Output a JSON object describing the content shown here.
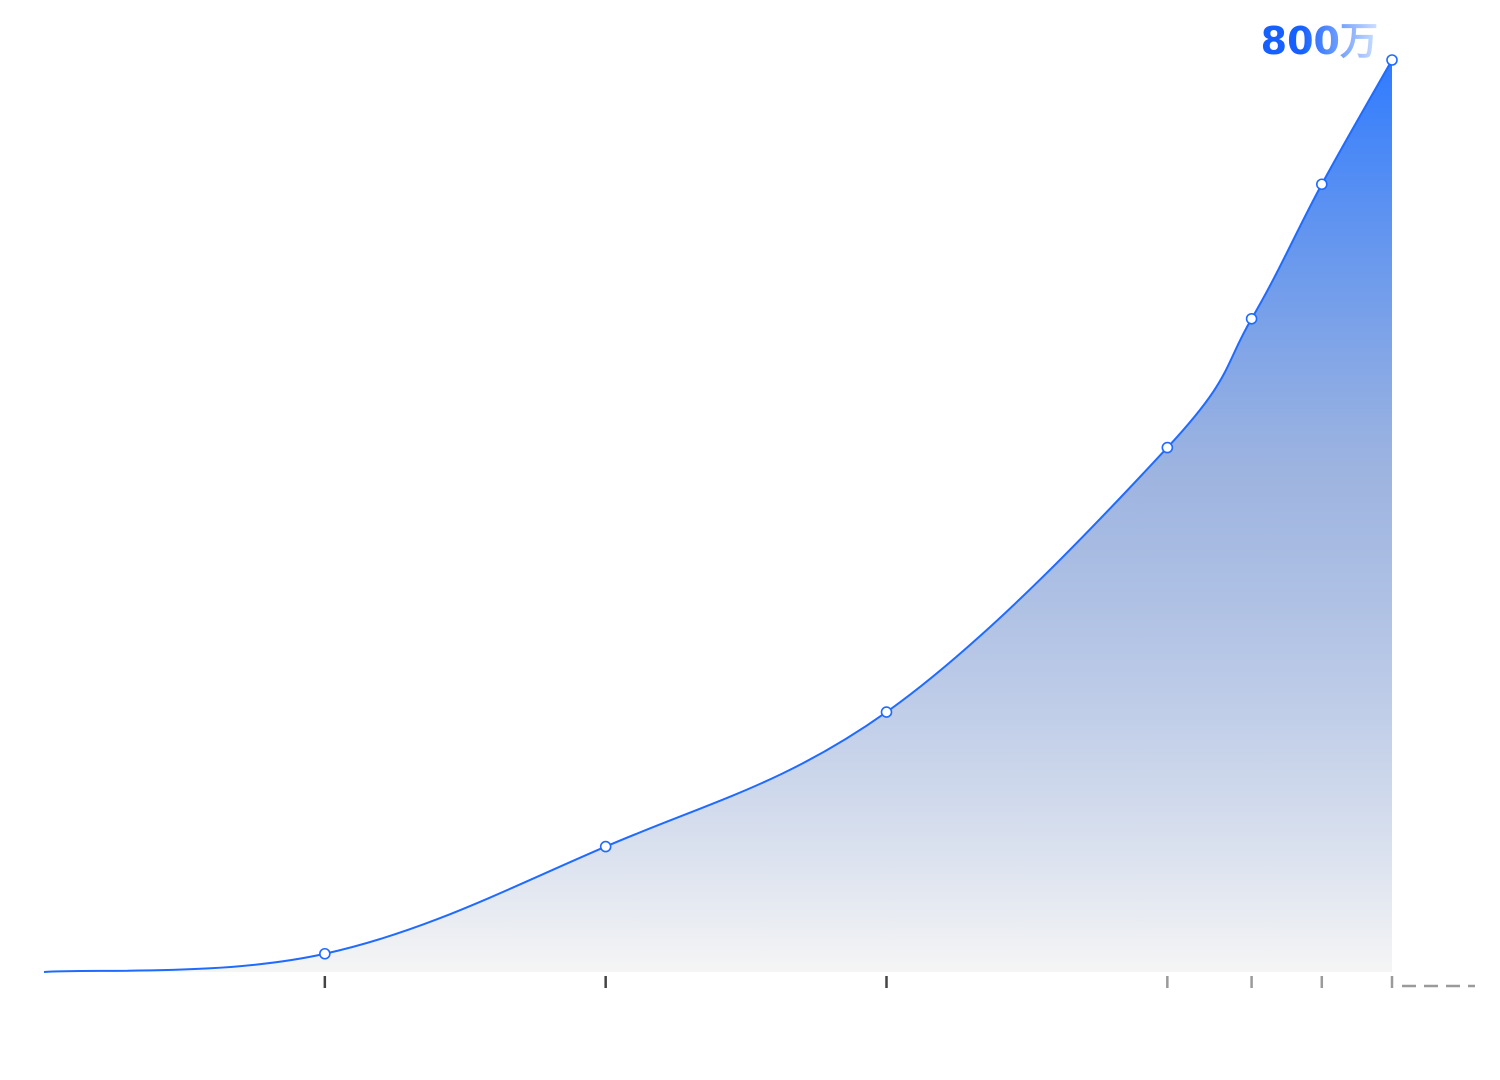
{
  "chart_data": {
    "type": "area",
    "title": "",
    "xlabel": "",
    "ylabel": "",
    "grid": false,
    "legend": "none",
    "peak_label": "800万",
    "points": [
      {
        "x": 0,
        "y": 0
      },
      {
        "x": 1,
        "y": 16
      },
      {
        "x": 2,
        "y": 110
      },
      {
        "x": 3,
        "y": 228
      },
      {
        "x": 4,
        "y": 460
      },
      {
        "x": 4.3,
        "y": 573
      },
      {
        "x": 4.55,
        "y": 691
      },
      {
        "x": 4.8,
        "y": 800
      }
    ],
    "x_ticks": [
      1,
      2,
      3,
      4,
      4.3,
      4.55,
      4.8
    ],
    "ylim": [
      0,
      800
    ],
    "colors": {
      "line": "#1f6bff",
      "area_top": "#2f7bff",
      "area_bottom": "#f5f5f5",
      "tick_dark": "#444444",
      "tick_light": "#9a9a9a",
      "marker_fill": "#ffffff",
      "label_start": "#1560ff",
      "label_end": "#cfe0ff"
    }
  }
}
